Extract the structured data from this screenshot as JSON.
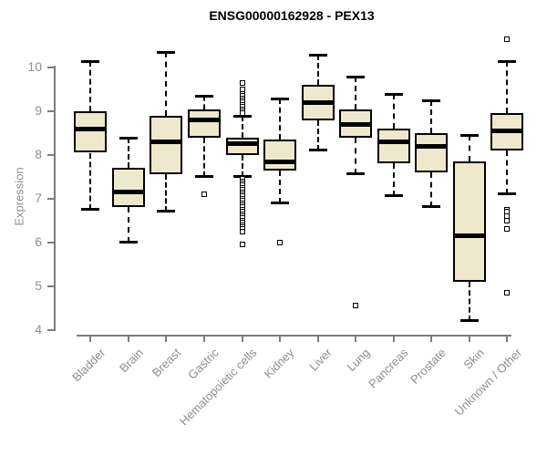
{
  "chart_data": {
    "type": "boxplot",
    "title": "ENSG00000162928 - PEX13",
    "ylabel": "Expression",
    "xlabel": "",
    "yticks": [
      4,
      5,
      6,
      7,
      8,
      9,
      10
    ],
    "ylim": [
      4,
      10.7
    ],
    "grid": false,
    "legend": false,
    "box_fill": "#EEE8CD",
    "box_border": "#000000",
    "axis_color": "#7d7d7d",
    "text_color": "#8e8e8e",
    "categories": [
      "Bladder",
      "Brain",
      "Breast",
      "Gastric",
      "Hematopoietic cells",
      "Kidney",
      "Liver",
      "Lung",
      "Pancreas",
      "Prostate",
      "Skin",
      "Unknown / Other"
    ],
    "boxes": [
      {
        "label": "Bladder",
        "low": 6.75,
        "q1": 8.05,
        "median": 8.6,
        "q3": 9.0,
        "high": 10.15,
        "outliers": []
      },
      {
        "label": "Brain",
        "low": 6.0,
        "q1": 6.8,
        "median": 7.15,
        "q3": 7.7,
        "high": 8.4,
        "outliers": []
      },
      {
        "label": "Breast",
        "low": 6.7,
        "q1": 7.55,
        "median": 8.3,
        "q3": 8.9,
        "high": 10.35,
        "outliers": []
      },
      {
        "label": "Gastric",
        "low": 7.5,
        "q1": 8.4,
        "median": 8.8,
        "q3": 9.05,
        "high": 9.35,
        "outliers": [
          7.1
        ]
      },
      {
        "label": "Hematopoietic cells",
        "low": 7.5,
        "q1": 8.0,
        "median": 8.25,
        "q3": 8.4,
        "high": 8.9,
        "outliers": [
          9.65,
          9.5,
          9.4,
          9.35,
          9.3,
          9.25,
          9.2,
          9.15,
          9.1,
          9.05,
          9.0,
          8.95,
          7.45,
          7.4,
          7.35,
          7.3,
          7.25,
          7.2,
          7.15,
          7.1,
          7.05,
          7.0,
          6.95,
          6.9,
          6.85,
          6.8,
          6.75,
          6.7,
          6.65,
          6.6,
          6.55,
          6.5,
          6.45,
          6.4,
          6.35,
          6.3,
          6.25,
          5.95
        ]
      },
      {
        "label": "Kidney",
        "low": 6.9,
        "q1": 7.65,
        "median": 7.85,
        "q3": 8.35,
        "high": 9.3,
        "outliers": [
          6.0
        ]
      },
      {
        "label": "Liver",
        "low": 8.1,
        "q1": 8.8,
        "median": 9.2,
        "q3": 9.6,
        "high": 10.3,
        "outliers": []
      },
      {
        "label": "Lung",
        "low": 7.55,
        "q1": 8.4,
        "median": 8.7,
        "q3": 9.05,
        "high": 9.8,
        "outliers": [
          4.55
        ]
      },
      {
        "label": "Pancreas",
        "low": 7.05,
        "q1": 7.8,
        "median": 8.3,
        "q3": 8.6,
        "high": 9.4,
        "outliers": []
      },
      {
        "label": "Prostate",
        "low": 6.8,
        "q1": 7.6,
        "median": 8.2,
        "q3": 8.5,
        "high": 9.25,
        "outliers": []
      },
      {
        "label": "Skin",
        "low": 4.2,
        "q1": 5.1,
        "median": 6.15,
        "q3": 7.85,
        "high": 8.45,
        "outliers": []
      },
      {
        "label": "Unknown / Other",
        "low": 7.1,
        "q1": 8.1,
        "median": 8.55,
        "q3": 8.95,
        "high": 10.15,
        "outliers": [
          10.65,
          6.75,
          6.7,
          6.6,
          6.5,
          6.3,
          4.85
        ]
      }
    ]
  }
}
